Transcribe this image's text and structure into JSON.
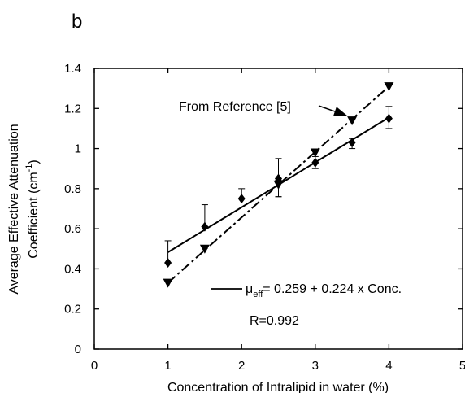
{
  "panel_label": "b",
  "chart_data": {
    "type": "scatter",
    "xlabel": "Concentration of Intralipid in water (%)",
    "ylabel_line1": "Average Effective Attenuation",
    "ylabel_line2": "Coefficient (cm",
    "ylabel_sup": "-1",
    "ylabel_close": ")",
    "xlim": [
      0,
      5
    ],
    "ylim": [
      0,
      1.4
    ],
    "x_ticks": [
      0,
      1,
      2,
      3,
      4,
      5
    ],
    "x_tick_labels": [
      "0",
      "1",
      "2",
      "3",
      "4",
      "5"
    ],
    "y_ticks": [
      0,
      0.2,
      0.4,
      0.6,
      0.8,
      1,
      1.2,
      1.4
    ],
    "y_tick_labels": [
      "0",
      "0.2",
      "0.4",
      "0.6",
      "0.8",
      "1",
      "1.2",
      "1.4"
    ],
    "grid": false,
    "series": [
      {
        "marker": "diamond",
        "line": "solid",
        "x": [
          1,
          1.5,
          2,
          2.5,
          2.5,
          3,
          3.5,
          4
        ],
        "y": [
          0.43,
          0.61,
          0.75,
          0.84,
          0.85,
          0.93,
          1.03,
          1.15
        ],
        "err_upper": [
          0.54,
          0.72,
          0.8,
          0.95,
          0.95,
          0.96,
          1.05,
          1.21
        ],
        "err_lower": [
          0.43,
          0.61,
          0.75,
          0.76,
          0.76,
          0.9,
          1.0,
          1.1
        ],
        "fit_x": [
          1,
          4
        ],
        "fit_y": [
          0.483,
          1.155
        ]
      },
      {
        "marker": "triangle-down",
        "line": "dash-dot",
        "x": [
          1,
          1.5,
          2.5,
          3,
          3.5,
          4
        ],
        "y": [
          0.33,
          0.5,
          0.82,
          0.98,
          1.14,
          1.31
        ],
        "fit_x": [
          1,
          4
        ],
        "fit_y": [
          0.33,
          1.31
        ]
      }
    ],
    "legend": {
      "label_mu": "μ",
      "label_sub": "eff",
      "label_rest": "= 0.259 + 0.224 x Conc.",
      "r_value": "R=0.992"
    },
    "annotation": {
      "text": "From Reference [5]",
      "arrow_target_x": 3.5,
      "arrow_target_y": 1.14
    },
    "color": "#000000"
  }
}
